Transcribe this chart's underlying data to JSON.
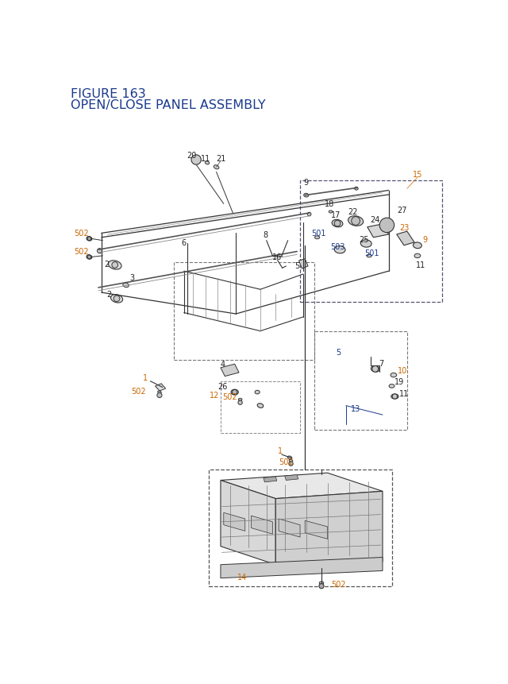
{
  "title_line1": "FIGURE 163",
  "title_line2": "OPEN/CLOSE PANEL ASSEMBLY",
  "title_color": "#1a3a8c",
  "title_fontsize": 11.5,
  "bg_color": "#ffffff",
  "oc": "#cc6600",
  "bc": "#1a3a8c",
  "kc": "#222222",
  "lc": "#333333",
  "fs": 7.0
}
